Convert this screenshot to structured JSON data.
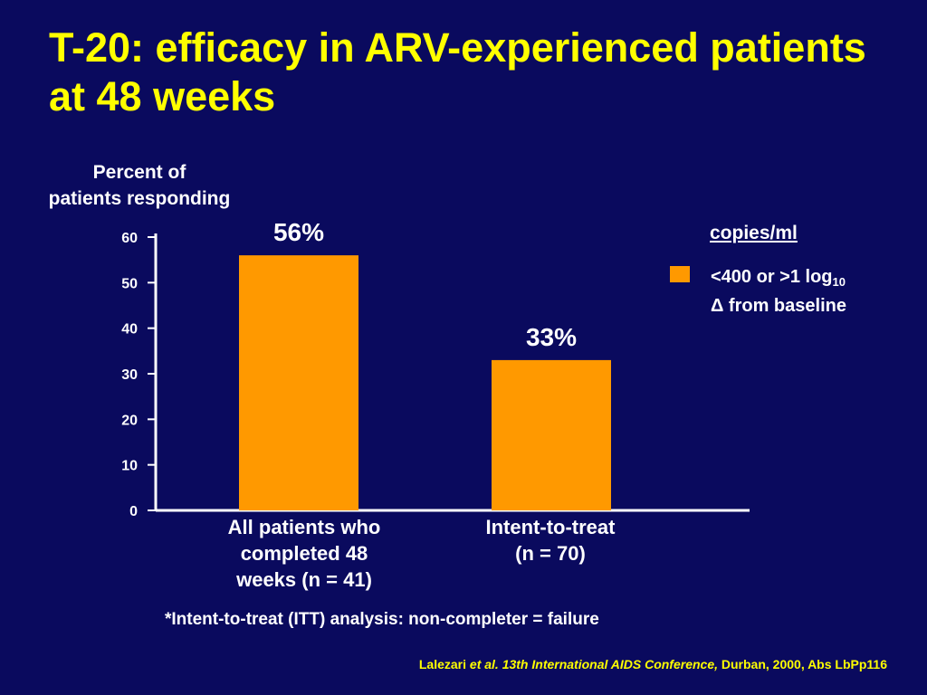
{
  "title": "T-20: efficacy in ARV-experienced patients at 48 weeks",
  "legend": {
    "title": "copies/ml",
    "entry_line1_a": "<400 or  >1 log",
    "entry_line1_sub": "10",
    "entry_line2": "Δ  from baseline",
    "color": "#ff9900"
  },
  "footnote": "*Intent-to-treat (ITT) analysis: non-completer = failure",
  "citation": {
    "author": "Lalezari",
    "etal_conf": "et al. 13th International AIDS Conference,",
    "rest": "Durban, 2000, Abs LbPp116"
  },
  "chart_data": {
    "type": "bar",
    "title": "",
    "ylabel": "Percent of patients responding",
    "ylabel_lines": [
      "Percent of",
      "patients responding"
    ],
    "xlabel": "",
    "categories": [
      "All patients who completed 48 weeks (n = 41)",
      "Intent-to-treat (n = 70)"
    ],
    "category_lines": [
      [
        "All patients who",
        "completed 48",
        "weeks (n = 41)"
      ],
      [
        "Intent-to-treat",
        "(n = 70)"
      ]
    ],
    "series": [
      {
        "name": "<400 or >1 log10 Δ from baseline",
        "values": [
          56,
          33
        ]
      }
    ],
    "data_labels": [
      "56%",
      "33%"
    ],
    "ylim": [
      0,
      60
    ],
    "yticks": [
      0,
      10,
      20,
      30,
      40,
      50,
      60
    ],
    "bar_color": "#ff9900",
    "grid": false,
    "legend_position": "right"
  }
}
